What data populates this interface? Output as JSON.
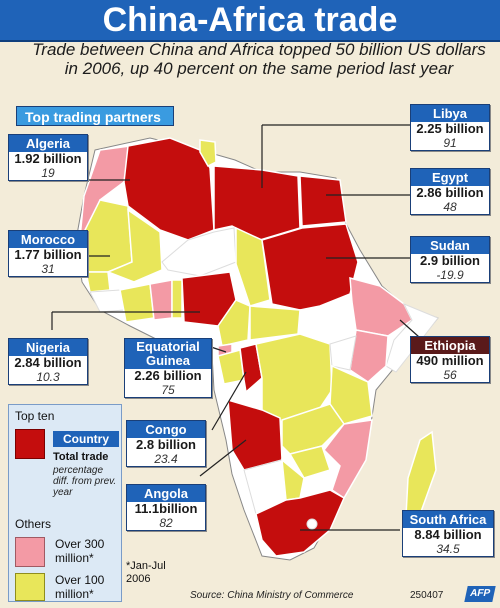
{
  "title": "China-Africa trade",
  "subtitle": "Trade between China and Africa topped 50 billion US dollars in 2006, up 40 percent on the same period last year",
  "top_partners_label": "Top trading partners",
  "colors": {
    "top_ten": "#c40d0d",
    "over_300m": "#f39aa5",
    "over_100m": "#e8e65a",
    "other": "#ffffff",
    "accent": "#1f63b8"
  },
  "partners": [
    {
      "name": "Algeria",
      "value": "1.92 billion",
      "change": "19"
    },
    {
      "name": "Morocco",
      "value": "1.77 billion",
      "change": "31"
    },
    {
      "name": "Nigeria",
      "value": "2.84 billion",
      "change": "10.3"
    },
    {
      "name": "Equatorial Guinea",
      "value": "2.26 billion",
      "change": "75"
    },
    {
      "name": "Congo",
      "value": "2.8 billion",
      "change": "23.4"
    },
    {
      "name": "Angola",
      "value": "11.1billion",
      "change": "82"
    },
    {
      "name": "Libya",
      "value": "2.25 billion",
      "change": "91"
    },
    {
      "name": "Egypt",
      "value": "2.86 billion",
      "change": "48"
    },
    {
      "name": "Sudan",
      "value": "2.9 billion",
      "change": "-19.9"
    },
    {
      "name": "Ethiopia",
      "value": "490 million",
      "change": "56"
    },
    {
      "name": "South Africa",
      "value": "8.84 billion",
      "change": "34.5"
    }
  ],
  "legend": {
    "title": "Top ten",
    "country_label": "Country",
    "total_label": "Total trade",
    "pct_label": "percentage diff. from prev. year",
    "others_label": "Others",
    "over300_label": "Over 300 million*",
    "over100_label": "Over 100 million*",
    "footnote": "*Jan-Jul 2006"
  },
  "source": "Source: China Ministry of Commerce",
  "code": "250407",
  "logo": "AFP"
}
